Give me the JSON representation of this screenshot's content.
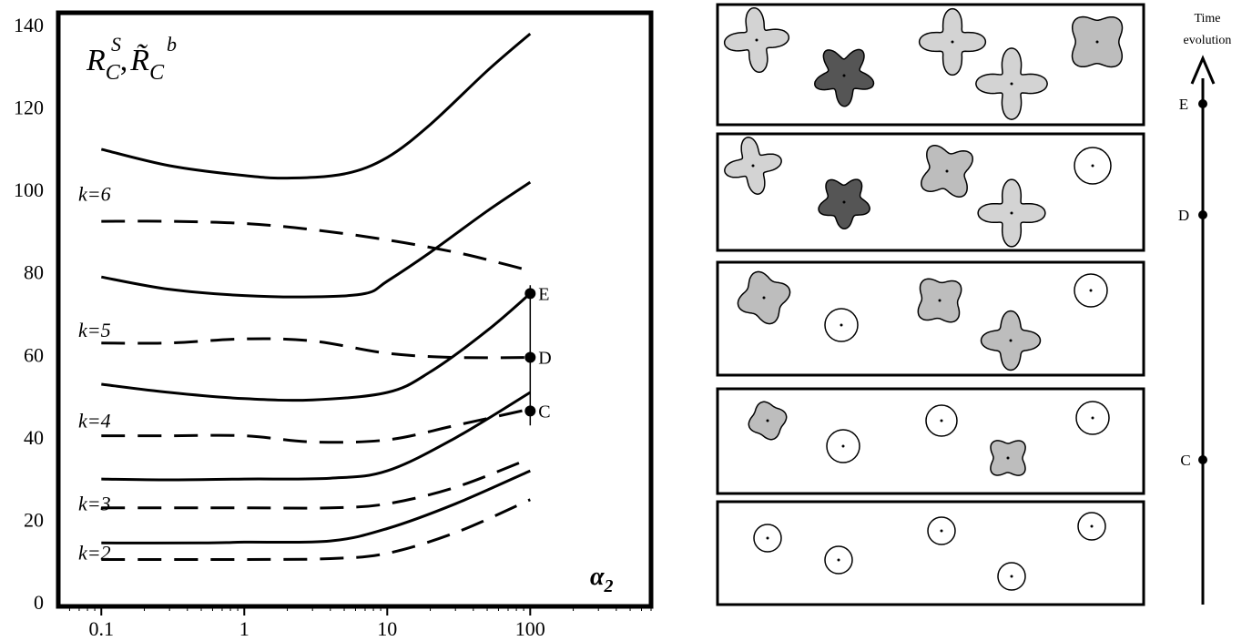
{
  "colors": {
    "ink": "#000000",
    "light": "#d3d3d3",
    "mid": "#bdbdbd",
    "dark": "#555555",
    "white": "#ffffff"
  },
  "chart_data": {
    "type": "line",
    "title": "",
    "ylabel_parts": {
      "a": "R",
      "a_sub": "C",
      "a_sup": "S",
      "sep": ",",
      "b": "R̃",
      "b_sub": "C",
      "b_sup": "b"
    },
    "xlabel": "α",
    "xlabel_sub": "2",
    "x_scale": "log",
    "xlim": [
      0.05,
      700
    ],
    "ylim": [
      0,
      140
    ],
    "x_ticks": [
      {
        "v": 0.1,
        "label": "0.1"
      },
      {
        "v": 1,
        "label": "1"
      },
      {
        "v": 10,
        "label": "10"
      },
      {
        "v": 100,
        "label": "100"
      }
    ],
    "y_ticks": [
      {
        "v": 0,
        "label": "0"
      },
      {
        "v": 20,
        "label": "20"
      },
      {
        "v": 40,
        "label": "40"
      },
      {
        "v": 60,
        "label": "60"
      },
      {
        "v": 80,
        "label": "80"
      },
      {
        "v": 100,
        "label": "100"
      },
      {
        "v": 120,
        "label": "120"
      },
      {
        "v": 140,
        "label": "140"
      }
    ],
    "k_labels": [
      {
        "text": "k=6",
        "y": 99
      },
      {
        "text": "k=5",
        "y": 66
      },
      {
        "text": "k=4",
        "y": 44
      },
      {
        "text": "k=3",
        "y": 24
      },
      {
        "text": "k=2",
        "y": 12
      }
    ],
    "series": [
      {
        "k": 6,
        "style": "solid",
        "x": [
          0.1,
          0.3,
          1,
          2,
          5,
          10,
          20,
          50,
          100
        ],
        "y": [
          110,
          106,
          103.6,
          103,
          104,
          108,
          116,
          129,
          138
        ]
      },
      {
        "k": 6,
        "style": "dashed",
        "x": [
          0.1,
          0.3,
          1,
          3,
          10,
          30,
          60,
          100
        ],
        "y": [
          92.5,
          92.5,
          92,
          90.5,
          88,
          85,
          82.5,
          80.5
        ]
      },
      {
        "k": 5,
        "style": "solid",
        "x": [
          0.1,
          0.3,
          1,
          3,
          7,
          10,
          20,
          50,
          100
        ],
        "y": [
          79,
          76,
          74.5,
          74.2,
          75,
          78,
          85,
          95,
          102
        ]
      },
      {
        "k": 5,
        "style": "dashed",
        "x": [
          0.1,
          0.3,
          1,
          3,
          10,
          30,
          100
        ],
        "y": [
          63,
          63,
          64,
          63.5,
          60.5,
          59.5,
          59.5
        ]
      },
      {
        "k": 4,
        "style": "solid",
        "x": [
          0.1,
          0.3,
          1,
          3,
          10,
          20,
          50,
          100
        ],
        "y": [
          53,
          51,
          49.5,
          49.2,
          51,
          56,
          66,
          75
        ]
      },
      {
        "k": 4,
        "style": "dashed",
        "x": [
          0.1,
          0.3,
          1,
          3,
          10,
          30,
          100
        ],
        "y": [
          40.5,
          40.5,
          40.5,
          39,
          39.5,
          43,
          47
        ]
      },
      {
        "k": 3,
        "style": "solid",
        "x": [
          0.1,
          0.3,
          1,
          4,
          10,
          30,
          100
        ],
        "y": [
          30,
          29.8,
          30,
          30.2,
          32,
          40,
          51
        ]
      },
      {
        "k": 3,
        "style": "dashed",
        "x": [
          0.1,
          1,
          4,
          10,
          30,
          100
        ],
        "y": [
          23,
          23,
          23,
          24,
          28,
          35
        ]
      },
      {
        "k": 2,
        "style": "solid",
        "x": [
          0.1,
          0.5,
          1,
          4,
          10,
          30,
          100
        ],
        "y": [
          14.5,
          14.5,
          14.7,
          15,
          18,
          24,
          32
        ]
      },
      {
        "k": 2,
        "style": "dashed",
        "x": [
          0.1,
          1,
          4,
          10,
          30,
          100
        ],
        "y": [
          10.5,
          10.5,
          10.7,
          12,
          17,
          25
        ]
      }
    ],
    "points": [
      {
        "label": "E",
        "x": 100,
        "y": 75
      },
      {
        "label": "D",
        "x": 100,
        "y": 59.5
      },
      {
        "label": "C",
        "x": 100,
        "y": 46.5
      }
    ],
    "vline": {
      "x": 100,
      "y0": 43,
      "y1": 77
    }
  },
  "panels_right": {
    "time_label_line1": "Time",
    "time_label_line2": "evolution",
    "stage_points": [
      {
        "label": "E"
      },
      {
        "label": "D"
      },
      {
        "label": "C"
      }
    ]
  }
}
